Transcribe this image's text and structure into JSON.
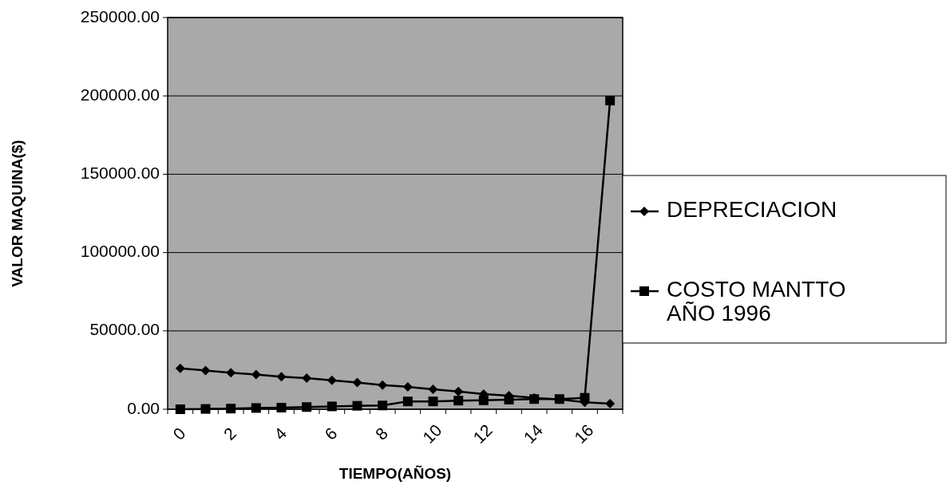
{
  "chart_data": {
    "type": "line",
    "xlabel": "TIEMPO(AÑOS)",
    "ylabel": "VALOR MAQUINA($)",
    "categories": [
      "0",
      null,
      "2",
      null,
      "4",
      null,
      "6",
      null,
      "8",
      null,
      "10",
      null,
      "12",
      null,
      "14",
      null,
      "16",
      null
    ],
    "series": [
      {
        "name": "DEPRECIACION",
        "color": "#000000",
        "marker": "diamond",
        "values": [
          26100,
          24700,
          23300,
          22100,
          20800,
          19800,
          18400,
          17000,
          15400,
          14300,
          12700,
          11300,
          9700,
          8700,
          7300,
          6300,
          4400,
          3600
        ]
      },
      {
        "name": "COSTO MANTTO AÑO 1996",
        "color": "#000000",
        "marker": "square",
        "values": [
          0,
          200,
          400,
          800,
          1000,
          1400,
          1800,
          2200,
          2400,
          5000,
          5000,
          5500,
          5700,
          6100,
          6500,
          6500,
          7300,
          197000
        ]
      }
    ],
    "ylim": [
      0,
      250000
    ],
    "yticks": [
      {
        "value": 0,
        "label": "0.00"
      },
      {
        "value": 50000,
        "label": "50000.00"
      },
      {
        "value": 100000,
        "label": "100000.00"
      },
      {
        "value": 150000,
        "label": "150000.00"
      },
      {
        "value": 200000,
        "label": "200000.00"
      },
      {
        "value": 250000,
        "label": "250000.00"
      }
    ],
    "grid": "y",
    "legend": "right"
  }
}
